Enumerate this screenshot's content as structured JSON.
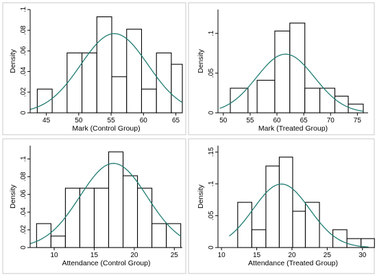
{
  "chart_data": [
    {
      "type": "bar",
      "xlabel": "Mark (Control Group)",
      "ylabel": "Density",
      "xlim": [
        42.5,
        66
      ],
      "ylim": [
        0,
        0.1
      ],
      "xticks": [
        45,
        50,
        55,
        60,
        65
      ],
      "yticks": [
        0,
        0.02,
        0.04,
        0.06,
        0.08,
        0.1
      ],
      "ytick_labels": [
        "0",
        ".02",
        ".04",
        ".06",
        ".08",
        ".1"
      ],
      "bins": [
        {
          "x0": 43.6,
          "x1": 45.9,
          "value": 0.023
        },
        {
          "x0": 48.2,
          "x1": 50.5,
          "value": 0.058
        },
        {
          "x0": 50.5,
          "x1": 52.8,
          "value": 0.058
        },
        {
          "x0": 52.8,
          "x1": 55.1,
          "value": 0.093
        },
        {
          "x0": 55.1,
          "x1": 57.4,
          "value": 0.035
        },
        {
          "x0": 57.4,
          "x1": 59.7,
          "value": 0.081
        },
        {
          "x0": 59.7,
          "x1": 62.0,
          "value": 0.023
        },
        {
          "x0": 62.0,
          "x1": 64.3,
          "value": 0.058
        },
        {
          "x0": 64.3,
          "x1": 66.0,
          "value": 0.047
        }
      ],
      "normal_curve": {
        "mean": 55.5,
        "sd": 5.2
      }
    },
    {
      "type": "bar",
      "xlabel": "Mark (Treated Group)",
      "ylabel": "Density",
      "xlim": [
        49,
        77
      ],
      "ylim": [
        0,
        0.13
      ],
      "xticks": [
        50,
        55,
        60,
        65,
        70,
        75
      ],
      "yticks": [
        0,
        0.05,
        0.1
      ],
      "ytick_labels": [
        "0",
        ".05",
        ".1"
      ],
      "bins": [
        {
          "x0": 51.3,
          "x1": 54.6,
          "value": 0.031
        },
        {
          "x0": 56.3,
          "x1": 59.6,
          "value": 0.041
        },
        {
          "x0": 59.6,
          "x1": 62.4,
          "value": 0.103
        },
        {
          "x0": 62.4,
          "x1": 65.2,
          "value": 0.113
        },
        {
          "x0": 65.2,
          "x1": 68.0,
          "value": 0.031
        },
        {
          "x0": 68.0,
          "x1": 70.8,
          "value": 0.031
        },
        {
          "x0": 70.8,
          "x1": 73.3,
          "value": 0.021
        },
        {
          "x0": 73.3,
          "x1": 76.1,
          "value": 0.011
        }
      ],
      "normal_curve": {
        "mean": 61.6,
        "sd": 5.4
      }
    },
    {
      "type": "bar",
      "xlabel": "Attendance (Control Group)",
      "ylabel": "Density",
      "xlim": [
        7,
        26
      ],
      "ylim": [
        0,
        0.115
      ],
      "xticks": [
        10,
        15,
        20,
        25
      ],
      "yticks": [
        0,
        0.02,
        0.04,
        0.06,
        0.08,
        0.1
      ],
      "ytick_labels": [
        "0",
        ".02",
        ".04",
        ".06",
        ".08",
        ".1"
      ],
      "bins": [
        {
          "x0": 7.8,
          "x1": 9.6,
          "value": 0.027
        },
        {
          "x0": 9.6,
          "x1": 11.4,
          "value": 0.013
        },
        {
          "x0": 11.4,
          "x1": 13.2,
          "value": 0.067
        },
        {
          "x0": 13.2,
          "x1": 15.0,
          "value": 0.067
        },
        {
          "x0": 15.0,
          "x1": 16.8,
          "value": 0.067
        },
        {
          "x0": 16.8,
          "x1": 18.6,
          "value": 0.108
        },
        {
          "x0": 18.6,
          "x1": 20.4,
          "value": 0.081
        },
        {
          "x0": 20.4,
          "x1": 22.2,
          "value": 0.067
        },
        {
          "x0": 22.2,
          "x1": 24.0,
          "value": 0.027
        },
        {
          "x0": 24.0,
          "x1": 25.8,
          "value": 0.027
        }
      ],
      "normal_curve": {
        "mean": 17.4,
        "sd": 4.2
      }
    },
    {
      "type": "bar",
      "xlabel": "Attendance (Treated Group)",
      "ylabel": "Density",
      "xlim": [
        9.5,
        30.8
      ],
      "ylim": [
        0,
        0.16
      ],
      "xticks": [
        10,
        15,
        20,
        25,
        30
      ],
      "yticks": [
        0,
        0.05,
        0.1,
        0.15
      ],
      "ytick_labels": [
        "0",
        ".05",
        ".1",
        ".15"
      ],
      "bins": [
        {
          "x0": 12.3,
          "x1": 14.3,
          "value": 0.071
        },
        {
          "x0": 14.3,
          "x1": 16.3,
          "value": 0.028
        },
        {
          "x0": 16.3,
          "x1": 18.2,
          "value": 0.128
        },
        {
          "x0": 18.2,
          "x1": 20.1,
          "value": 0.142
        },
        {
          "x0": 20.1,
          "x1": 21.9,
          "value": 0.057
        },
        {
          "x0": 21.9,
          "x1": 23.9,
          "value": 0.071
        },
        {
          "x0": 25.8,
          "x1": 27.8,
          "value": 0.028
        },
        {
          "x0": 27.8,
          "x1": 29.8,
          "value": 0.014
        },
        {
          "x0": 29.8,
          "x1": 31.7,
          "value": 0.014
        }
      ],
      "normal_curve": {
        "mean": 18.5,
        "sd": 4.0
      }
    }
  ],
  "colors": {
    "bar_fill": "#ffffff",
    "bar_edge": "#000000",
    "curve": "#1e7b72",
    "panel_border": "#c8c8c8"
  }
}
